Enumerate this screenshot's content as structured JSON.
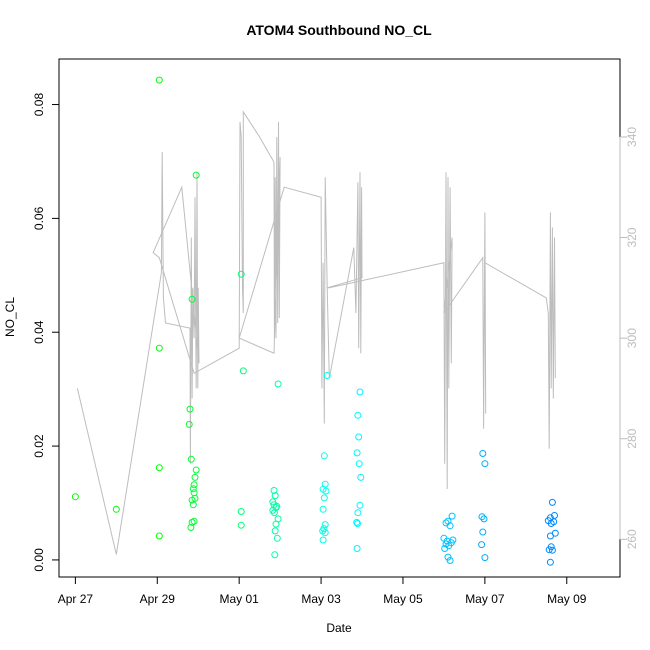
{
  "chart_data": {
    "type": "scatter",
    "title": "ATOM4 Southbound NO_CL",
    "xlabel": "Date",
    "ylabel": "NO_CL",
    "x_ticks": [
      "Apr 27",
      "Apr 29",
      "May 01",
      "May 03",
      "May 05",
      "May 07",
      "May 09"
    ],
    "xlim": [
      "Apr 26.6",
      "May 10.3"
    ],
    "ylim": [
      -0.003,
      0.088
    ],
    "y_ticks": [
      "0.00",
      "0.02",
      "0.04",
      "0.06",
      "0.08"
    ],
    "y2lim": [
      252.5,
      355.5
    ],
    "y2_ticks": [
      "260",
      "280",
      "300",
      "320",
      "340"
    ],
    "grid": false,
    "legend": "none",
    "colors": {
      "line": "#bdbdbd",
      "axis": "#000000",
      "right_axis": "#bdbdbd",
      "early": "#00ff00",
      "mid": "#00ffff",
      "late": "#0080ff"
    },
    "series": [
      {
        "axis": "left",
        "marker": "open-circle",
        "points": [
          {
            "x": 27.0,
            "y": 0.0111
          },
          {
            "x": 28.0,
            "y": 0.0089
          },
          {
            "x": 29.05,
            "y": 0.0843
          },
          {
            "x": 29.05,
            "y": 0.0372
          },
          {
            "x": 29.05,
            "y": 0.0162
          },
          {
            "x": 29.05,
            "y": 0.0042
          },
          {
            "x": 29.8,
            "y": 0.0265
          },
          {
            "x": 29.78,
            "y": 0.0238
          },
          {
            "x": 29.85,
            "y": 0.0458
          },
          {
            "x": 29.83,
            "y": 0.0177
          },
          {
            "x": 29.95,
            "y": 0.0676
          },
          {
            "x": 29.95,
            "y": 0.0158
          },
          {
            "x": 29.92,
            "y": 0.0145
          },
          {
            "x": 29.9,
            "y": 0.0132
          },
          {
            "x": 29.88,
            "y": 0.0125
          },
          {
            "x": 29.9,
            "y": 0.0118
          },
          {
            "x": 29.85,
            "y": 0.0105
          },
          {
            "x": 29.92,
            "y": 0.0108
          },
          {
            "x": 29.88,
            "y": 0.0097
          },
          {
            "x": 29.85,
            "y": 0.0066
          },
          {
            "x": 29.9,
            "y": 0.0068
          },
          {
            "x": 29.82,
            "y": 0.0057
          },
          {
            "x": 31.05,
            "y": 0.0502
          },
          {
            "x": 31.1,
            "y": 0.0332
          },
          {
            "x": 31.05,
            "y": 0.0085
          },
          {
            "x": 31.05,
            "y": 0.0061
          },
          {
            "x": 31.85,
            "y": 0.0122
          },
          {
            "x": 31.88,
            "y": 0.0113
          },
          {
            "x": 31.82,
            "y": 0.0102
          },
          {
            "x": 31.85,
            "y": 0.0097
          },
          {
            "x": 31.9,
            "y": 0.0092
          },
          {
            "x": 31.82,
            "y": 0.0087
          },
          {
            "x": 31.86,
            "y": 0.0083
          },
          {
            "x": 31.92,
            "y": 0.0094
          },
          {
            "x": 31.95,
            "y": 0.0309
          },
          {
            "x": 31.95,
            "y": 0.0072
          },
          {
            "x": 31.9,
            "y": 0.0063
          },
          {
            "x": 31.88,
            "y": 0.0051
          },
          {
            "x": 31.93,
            "y": 0.0038
          },
          {
            "x": 31.87,
            "y": 0.0009
          },
          {
            "x": 33.15,
            "y": 0.0324
          },
          {
            "x": 33.08,
            "y": 0.0183
          },
          {
            "x": 33.1,
            "y": 0.0133
          },
          {
            "x": 33.05,
            "y": 0.0124
          },
          {
            "x": 33.12,
            "y": 0.0121
          },
          {
            "x": 33.08,
            "y": 0.0109
          },
          {
            "x": 33.05,
            "y": 0.0089
          },
          {
            "x": 33.1,
            "y": 0.0062
          },
          {
            "x": 33.07,
            "y": 0.0055
          },
          {
            "x": 33.04,
            "y": 0.0051
          },
          {
            "x": 33.1,
            "y": 0.0048
          },
          {
            "x": 33.05,
            "y": 0.0035
          },
          {
            "x": 33.95,
            "y": 0.0295
          },
          {
            "x": 33.9,
            "y": 0.0254
          },
          {
            "x": 33.92,
            "y": 0.0216
          },
          {
            "x": 33.88,
            "y": 0.0188
          },
          {
            "x": 33.93,
            "y": 0.0169
          },
          {
            "x": 33.97,
            "y": 0.0145
          },
          {
            "x": 33.95,
            "y": 0.0096
          },
          {
            "x": 33.9,
            "y": 0.0083
          },
          {
            "x": 33.87,
            "y": 0.0066
          },
          {
            "x": 33.89,
            "y": 0.0064
          },
          {
            "x": 33.88,
            "y": 0.002
          },
          {
            "x": 36.2,
            "y": 0.0077
          },
          {
            "x": 36.1,
            "y": 0.0068
          },
          {
            "x": 36.05,
            "y": 0.0065
          },
          {
            "x": 36.15,
            "y": 0.006
          },
          {
            "x": 36.22,
            "y": 0.0035
          },
          {
            "x": 36.0,
            "y": 0.0038
          },
          {
            "x": 36.08,
            "y": 0.0033
          },
          {
            "x": 36.18,
            "y": 0.003
          },
          {
            "x": 36.05,
            "y": 0.0028
          },
          {
            "x": 36.12,
            "y": 0.0025
          },
          {
            "x": 36.02,
            "y": 0.002
          },
          {
            "x": 36.1,
            "y": 0.0005
          },
          {
            "x": 36.15,
            "y": -0.0001
          },
          {
            "x": 36.95,
            "y": 0.0187
          },
          {
            "x": 37.0,
            "y": 0.0169
          },
          {
            "x": 36.93,
            "y": 0.0076
          },
          {
            "x": 36.98,
            "y": 0.0072
          },
          {
            "x": 36.95,
            "y": 0.0049
          },
          {
            "x": 36.92,
            "y": 0.0027
          },
          {
            "x": 37.0,
            "y": 0.0004
          },
          {
            "x": 38.65,
            "y": 0.0101
          },
          {
            "x": 38.6,
            "y": 0.0074
          },
          {
            "x": 38.7,
            "y": 0.0078
          },
          {
            "x": 38.55,
            "y": 0.0069
          },
          {
            "x": 38.62,
            "y": 0.0064
          },
          {
            "x": 38.68,
            "y": 0.0067
          },
          {
            "x": 38.6,
            "y": 0.0042
          },
          {
            "x": 38.72,
            "y": 0.0047
          },
          {
            "x": 38.62,
            "y": 0.0023
          },
          {
            "x": 38.57,
            "y": 0.0018
          },
          {
            "x": 38.65,
            "y": 0.0017
          },
          {
            "x": 38.6,
            "y": -0.0004
          }
        ]
      },
      {
        "axis": "right",
        "style": "line",
        "points": [
          {
            "x": 27.05,
            "y": 290
          },
          {
            "x": 28.0,
            "y": 257
          },
          {
            "x": 29.1,
            "y": 313
          },
          {
            "x": 29.12,
            "y": 337
          },
          {
            "x": 29.15,
            "y": 308
          },
          {
            "x": 29.2,
            "y": 303
          },
          {
            "x": 29.8,
            "y": 302
          },
          {
            "x": 29.81,
            "y": 275
          },
          {
            "x": 29.83,
            "y": 320
          },
          {
            "x": 29.85,
            "y": 288
          },
          {
            "x": 29.87,
            "y": 310
          },
          {
            "x": 29.9,
            "y": 300
          },
          {
            "x": 29.92,
            "y": 328
          },
          {
            "x": 29.94,
            "y": 300
          },
          {
            "x": 29.95,
            "y": 290
          },
          {
            "x": 29.97,
            "y": 333
          },
          {
            "x": 29.99,
            "y": 290
          },
          {
            "x": 30.0,
            "y": 310
          },
          {
            "x": 30.02,
            "y": 295
          },
          {
            "x": 29.6,
            "y": 330
          },
          {
            "x": 28.9,
            "y": 317
          },
          {
            "x": 29.05,
            "y": 316
          },
          {
            "x": 29.9,
            "y": 293
          },
          {
            "x": 31.0,
            "y": 298
          },
          {
            "x": 31.02,
            "y": 343
          },
          {
            "x": 31.05,
            "y": 340
          },
          {
            "x": 31.08,
            "y": 310
          },
          {
            "x": 31.1,
            "y": 305
          },
          {
            "x": 31.1,
            "y": 345
          },
          {
            "x": 31.5,
            "y": 340
          },
          {
            "x": 31.85,
            "y": 335
          },
          {
            "x": 31.86,
            "y": 300
          },
          {
            "x": 31.88,
            "y": 332
          },
          {
            "x": 31.9,
            "y": 300
          },
          {
            "x": 31.92,
            "y": 340
          },
          {
            "x": 31.94,
            "y": 303
          },
          {
            "x": 31.96,
            "y": 343
          },
          {
            "x": 31.98,
            "y": 304
          },
          {
            "x": 32.0,
            "y": 336
          },
          {
            "x": 31.85,
            "y": 297
          },
          {
            "x": 31.0,
            "y": 300
          },
          {
            "x": 32.1,
            "y": 330
          },
          {
            "x": 33.0,
            "y": 328
          },
          {
            "x": 33.02,
            "y": 290
          },
          {
            "x": 33.05,
            "y": 315
          },
          {
            "x": 33.08,
            "y": 283
          },
          {
            "x": 33.1,
            "y": 332
          },
          {
            "x": 33.15,
            "y": 310
          },
          {
            "x": 33.2,
            "y": 292
          },
          {
            "x": 33.8,
            "y": 318
          },
          {
            "x": 33.85,
            "y": 305
          },
          {
            "x": 33.9,
            "y": 331
          },
          {
            "x": 33.92,
            "y": 298
          },
          {
            "x": 33.95,
            "y": 333
          },
          {
            "x": 33.97,
            "y": 297
          },
          {
            "x": 33.99,
            "y": 330
          },
          {
            "x": 34.0,
            "y": 312
          },
          {
            "x": 33.15,
            "y": 310
          },
          {
            "x": 33.2,
            "y": 310
          },
          {
            "x": 36.0,
            "y": 315
          },
          {
            "x": 36.02,
            "y": 275
          },
          {
            "x": 36.05,
            "y": 333
          },
          {
            "x": 36.08,
            "y": 270
          },
          {
            "x": 36.1,
            "y": 332
          },
          {
            "x": 36.12,
            "y": 290
          },
          {
            "x": 36.15,
            "y": 330
          },
          {
            "x": 36.18,
            "y": 295
          },
          {
            "x": 36.2,
            "y": 320
          },
          {
            "x": 36.0,
            "y": 305
          },
          {
            "x": 36.95,
            "y": 316
          },
          {
            "x": 36.97,
            "y": 282
          },
          {
            "x": 37.0,
            "y": 325
          },
          {
            "x": 37.02,
            "y": 285
          },
          {
            "x": 37.0,
            "y": 315
          },
          {
            "x": 38.5,
            "y": 308
          },
          {
            "x": 38.55,
            "y": 305
          },
          {
            "x": 38.57,
            "y": 278
          },
          {
            "x": 38.6,
            "y": 325
          },
          {
            "x": 38.62,
            "y": 290
          },
          {
            "x": 38.65,
            "y": 322
          },
          {
            "x": 38.67,
            "y": 288
          },
          {
            "x": 38.7,
            "y": 320
          },
          {
            "x": 38.72,
            "y": 292
          }
        ]
      }
    ]
  }
}
